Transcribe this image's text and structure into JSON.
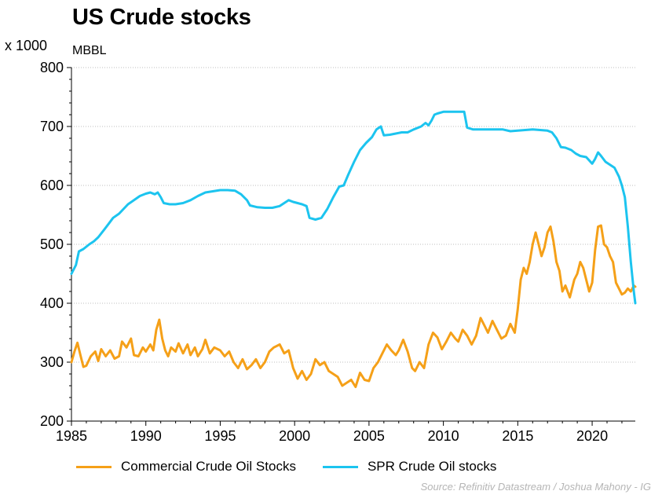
{
  "header": {
    "title": "US Crude stocks",
    "y_multiplier": "x 1000",
    "y_unit": "MBBL"
  },
  "source": "Source: Refinitiv Datastream / Joshua Mahony - IG",
  "chart_data": {
    "type": "line",
    "title": "US Crude stocks",
    "xlabel": "",
    "ylabel": "MBBL",
    "xlim": [
      1985,
      2022.9
    ],
    "ylim": [
      200,
      800
    ],
    "x_ticks": [
      1985,
      1990,
      1995,
      2000,
      2005,
      2010,
      2015,
      2020
    ],
    "y_ticks": [
      200,
      300,
      400,
      500,
      600,
      700,
      800
    ],
    "grid": "horizontal dotted",
    "legend_position": "bottom",
    "colors": {
      "commercial": "#F5A018",
      "spr": "#1CC4EF"
    },
    "series": [
      {
        "name": "Commercial Crude Oil Stocks",
        "color": "#F5A018",
        "points": [
          [
            1985.0,
            300
          ],
          [
            1985.2,
            318
          ],
          [
            1985.4,
            333
          ],
          [
            1985.6,
            312
          ],
          [
            1985.8,
            292
          ],
          [
            1986.0,
            294
          ],
          [
            1986.3,
            310
          ],
          [
            1986.6,
            318
          ],
          [
            1986.8,
            302
          ],
          [
            1987.0,
            322
          ],
          [
            1987.3,
            310
          ],
          [
            1987.6,
            320
          ],
          [
            1987.9,
            306
          ],
          [
            1988.2,
            310
          ],
          [
            1988.4,
            335
          ],
          [
            1988.7,
            325
          ],
          [
            1989.0,
            340
          ],
          [
            1989.2,
            312
          ],
          [
            1989.5,
            310
          ],
          [
            1989.8,
            325
          ],
          [
            1990.0,
            318
          ],
          [
            1990.3,
            330
          ],
          [
            1990.5,
            320
          ],
          [
            1990.7,
            355
          ],
          [
            1990.9,
            372
          ],
          [
            1991.1,
            340
          ],
          [
            1991.3,
            320
          ],
          [
            1991.5,
            310
          ],
          [
            1991.7,
            325
          ],
          [
            1992.0,
            318
          ],
          [
            1992.2,
            332
          ],
          [
            1992.5,
            315
          ],
          [
            1992.8,
            330
          ],
          [
            1993.0,
            312
          ],
          [
            1993.3,
            325
          ],
          [
            1993.5,
            310
          ],
          [
            1993.8,
            322
          ],
          [
            1994.0,
            338
          ],
          [
            1994.3,
            315
          ],
          [
            1994.6,
            325
          ],
          [
            1995.0,
            320
          ],
          [
            1995.3,
            310
          ],
          [
            1995.6,
            318
          ],
          [
            1995.9,
            300
          ],
          [
            1996.2,
            290
          ],
          [
            1996.5,
            305
          ],
          [
            1996.8,
            288
          ],
          [
            1997.1,
            295
          ],
          [
            1997.4,
            305
          ],
          [
            1997.7,
            290
          ],
          [
            1998.0,
            300
          ],
          [
            1998.3,
            318
          ],
          [
            1998.6,
            325
          ],
          [
            1999.0,
            330
          ],
          [
            1999.3,
            315
          ],
          [
            1999.6,
            320
          ],
          [
            1999.9,
            290
          ],
          [
            2000.2,
            272
          ],
          [
            2000.5,
            285
          ],
          [
            2000.8,
            270
          ],
          [
            2001.1,
            280
          ],
          [
            2001.4,
            305
          ],
          [
            2001.7,
            295
          ],
          [
            2002.0,
            300
          ],
          [
            2002.3,
            285
          ],
          [
            2002.6,
            280
          ],
          [
            2002.9,
            275
          ],
          [
            2003.2,
            260
          ],
          [
            2003.5,
            265
          ],
          [
            2003.8,
            270
          ],
          [
            2004.1,
            258
          ],
          [
            2004.4,
            282
          ],
          [
            2004.7,
            270
          ],
          [
            2005.0,
            268
          ],
          [
            2005.3,
            290
          ],
          [
            2005.6,
            300
          ],
          [
            2005.9,
            315
          ],
          [
            2006.2,
            330
          ],
          [
            2006.5,
            320
          ],
          [
            2006.8,
            312
          ],
          [
            2007.0,
            320
          ],
          [
            2007.3,
            338
          ],
          [
            2007.6,
            318
          ],
          [
            2007.9,
            290
          ],
          [
            2008.1,
            285
          ],
          [
            2008.4,
            300
          ],
          [
            2008.7,
            290
          ],
          [
            2009.0,
            330
          ],
          [
            2009.3,
            350
          ],
          [
            2009.6,
            342
          ],
          [
            2009.9,
            322
          ],
          [
            2010.2,
            335
          ],
          [
            2010.5,
            350
          ],
          [
            2010.8,
            340
          ],
          [
            2011.0,
            335
          ],
          [
            2011.3,
            355
          ],
          [
            2011.6,
            345
          ],
          [
            2011.9,
            330
          ],
          [
            2012.2,
            345
          ],
          [
            2012.5,
            375
          ],
          [
            2012.8,
            360
          ],
          [
            2013.0,
            350
          ],
          [
            2013.3,
            370
          ],
          [
            2013.6,
            355
          ],
          [
            2013.9,
            340
          ],
          [
            2014.2,
            345
          ],
          [
            2014.5,
            365
          ],
          [
            2014.8,
            350
          ],
          [
            2015.0,
            390
          ],
          [
            2015.2,
            440
          ],
          [
            2015.4,
            460
          ],
          [
            2015.6,
            450
          ],
          [
            2015.8,
            470
          ],
          [
            2016.0,
            500
          ],
          [
            2016.2,
            520
          ],
          [
            2016.4,
            500
          ],
          [
            2016.6,
            480
          ],
          [
            2016.8,
            495
          ],
          [
            2017.0,
            520
          ],
          [
            2017.2,
            530
          ],
          [
            2017.4,
            505
          ],
          [
            2017.6,
            470
          ],
          [
            2017.8,
            455
          ],
          [
            2018.0,
            420
          ],
          [
            2018.2,
            430
          ],
          [
            2018.5,
            410
          ],
          [
            2018.8,
            440
          ],
          [
            2019.0,
            450
          ],
          [
            2019.2,
            470
          ],
          [
            2019.4,
            460
          ],
          [
            2019.6,
            440
          ],
          [
            2019.8,
            420
          ],
          [
            2020.0,
            435
          ],
          [
            2020.2,
            490
          ],
          [
            2020.4,
            530
          ],
          [
            2020.6,
            532
          ],
          [
            2020.8,
            500
          ],
          [
            2021.0,
            495
          ],
          [
            2021.2,
            480
          ],
          [
            2021.4,
            470
          ],
          [
            2021.6,
            435
          ],
          [
            2021.8,
            425
          ],
          [
            2022.0,
            415
          ],
          [
            2022.2,
            418
          ],
          [
            2022.4,
            425
          ],
          [
            2022.6,
            420
          ],
          [
            2022.8,
            430
          ],
          [
            2022.9,
            428
          ]
        ]
      },
      {
        "name": "SPR Crude Oil stocks",
        "color": "#1CC4EF",
        "points": [
          [
            1985.0,
            450
          ],
          [
            1985.3,
            465
          ],
          [
            1985.5,
            488
          ],
          [
            1985.8,
            492
          ],
          [
            1986.2,
            500
          ],
          [
            1986.5,
            505
          ],
          [
            1986.8,
            512
          ],
          [
            1987.2,
            525
          ],
          [
            1987.5,
            535
          ],
          [
            1987.8,
            545
          ],
          [
            1988.2,
            552
          ],
          [
            1988.5,
            560
          ],
          [
            1988.8,
            568
          ],
          [
            1989.2,
            575
          ],
          [
            1989.6,
            582
          ],
          [
            1990.0,
            586
          ],
          [
            1990.3,
            588
          ],
          [
            1990.6,
            585
          ],
          [
            1990.8,
            588
          ],
          [
            1991.0,
            580
          ],
          [
            1991.2,
            570
          ],
          [
            1991.6,
            568
          ],
          [
            1992.0,
            568
          ],
          [
            1992.5,
            570
          ],
          [
            1993.0,
            575
          ],
          [
            1993.5,
            582
          ],
          [
            1994.0,
            588
          ],
          [
            1994.5,
            590
          ],
          [
            1995.0,
            592
          ],
          [
            1995.5,
            592
          ],
          [
            1996.0,
            591
          ],
          [
            1996.4,
            585
          ],
          [
            1996.8,
            575
          ],
          [
            1997.0,
            566
          ],
          [
            1997.5,
            563
          ],
          [
            1998.0,
            562
          ],
          [
            1998.5,
            562
          ],
          [
            1999.0,
            565
          ],
          [
            1999.3,
            570
          ],
          [
            1999.6,
            575
          ],
          [
            1999.9,
            572
          ],
          [
            2000.2,
            570
          ],
          [
            2000.5,
            568
          ],
          [
            2000.8,
            565
          ],
          [
            2001.0,
            545
          ],
          [
            2001.4,
            542
          ],
          [
            2001.8,
            545
          ],
          [
            2002.2,
            560
          ],
          [
            2002.6,
            580
          ],
          [
            2003.0,
            598
          ],
          [
            2003.3,
            600
          ],
          [
            2003.6,
            618
          ],
          [
            2004.0,
            640
          ],
          [
            2004.4,
            660
          ],
          [
            2004.8,
            672
          ],
          [
            2005.2,
            682
          ],
          [
            2005.5,
            695
          ],
          [
            2005.8,
            700
          ],
          [
            2006.0,
            685
          ],
          [
            2006.4,
            686
          ],
          [
            2006.8,
            688
          ],
          [
            2007.2,
            690
          ],
          [
            2007.6,
            690
          ],
          [
            2008.0,
            695
          ],
          [
            2008.5,
            700
          ],
          [
            2008.8,
            706
          ],
          [
            2009.0,
            702
          ],
          [
            2009.2,
            710
          ],
          [
            2009.4,
            720
          ],
          [
            2009.6,
            722
          ],
          [
            2010.0,
            725
          ],
          [
            2010.5,
            725
          ],
          [
            2011.0,
            725
          ],
          [
            2011.4,
            725
          ],
          [
            2011.6,
            698
          ],
          [
            2012.0,
            695
          ],
          [
            2012.5,
            695
          ],
          [
            2013.0,
            695
          ],
          [
            2013.5,
            695
          ],
          [
            2014.0,
            695
          ],
          [
            2014.5,
            692
          ],
          [
            2015.0,
            693
          ],
          [
            2015.5,
            694
          ],
          [
            2016.0,
            695
          ],
          [
            2016.5,
            694
          ],
          [
            2017.0,
            693
          ],
          [
            2017.3,
            690
          ],
          [
            2017.6,
            680
          ],
          [
            2017.9,
            665
          ],
          [
            2018.2,
            664
          ],
          [
            2018.6,
            660
          ],
          [
            2018.9,
            654
          ],
          [
            2019.2,
            650
          ],
          [
            2019.6,
            648
          ],
          [
            2020.0,
            637
          ],
          [
            2020.2,
            645
          ],
          [
            2020.4,
            656
          ],
          [
            2020.6,
            650
          ],
          [
            2020.9,
            640
          ],
          [
            2021.2,
            635
          ],
          [
            2021.5,
            630
          ],
          [
            2021.8,
            615
          ],
          [
            2022.0,
            600
          ],
          [
            2022.2,
            580
          ],
          [
            2022.4,
            530
          ],
          [
            2022.6,
            470
          ],
          [
            2022.8,
            420
          ],
          [
            2022.9,
            400
          ]
        ]
      }
    ]
  }
}
